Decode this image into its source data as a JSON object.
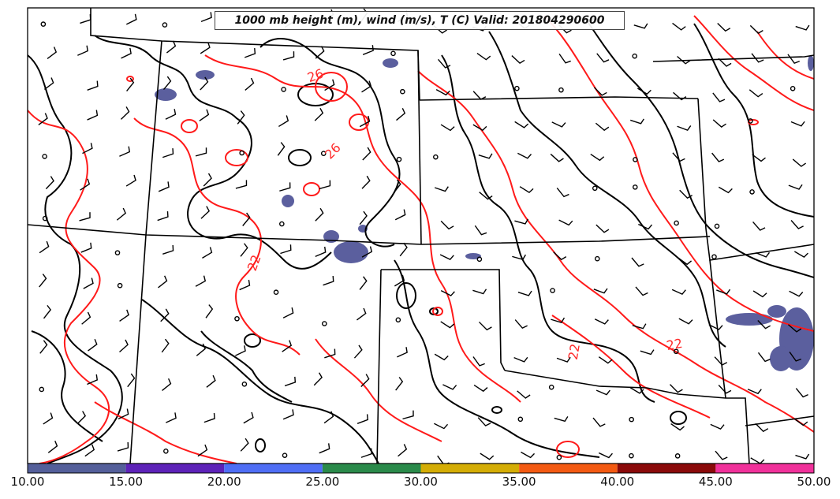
{
  "title": "1000 mb height (m), wind (m/s), T (C) Valid: 201804290600",
  "colorbar": {
    "ticks": [
      "10.00",
      "15.00",
      "20.00",
      "25.00",
      "30.00",
      "35.00",
      "40.00",
      "45.00",
      "50.00"
    ],
    "colors": [
      "#545f9a",
      "#5d22b8",
      "#4f6ef5",
      "#2a8a4a",
      "#d4ad06",
      "#f35a12",
      "#8a0a0a",
      "#f0319a"
    ]
  },
  "contour_labels": [
    "26",
    "26",
    "22",
    "22",
    "22"
  ],
  "colors": {
    "temperature_contour": "#ff1a1a",
    "height_contour": "#000000",
    "wind_shading": "#5b5f9e",
    "wind_barb": "#000000",
    "state_border": "#000000"
  }
}
